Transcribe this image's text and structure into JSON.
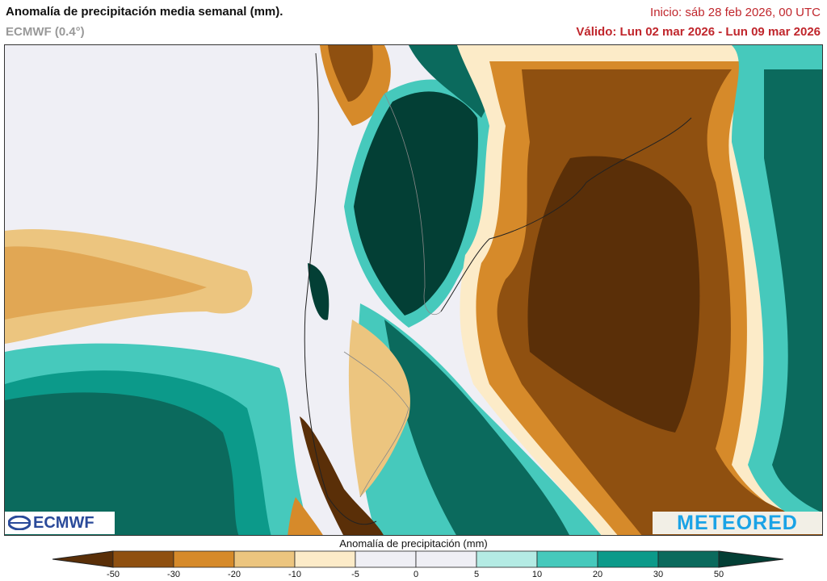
{
  "header": {
    "title": "Anomalía de precipitación media semanal (mm).",
    "model": "ECMWF (0.4°)",
    "init": "Inicio:  sáb 28 feb 2026, 00 UTC",
    "valid": "Válido: Lun 02 mar 2026 - Lun 09 mar 2026"
  },
  "logos": {
    "left": "ECMWF",
    "right": "METEORED"
  },
  "colorbar": {
    "title": "Anomalía de precipitación (mm)",
    "ticks": [
      "-50",
      "-30",
      "-20",
      "-10",
      "-5",
      "0",
      "5",
      "10",
      "20",
      "30",
      "50"
    ],
    "colors": [
      "#5a2f08",
      "#8f5010",
      "#d68a2a",
      "#ecc57f",
      "#fcebc8",
      "#efeff5",
      "#efeff5",
      "#b4ebe4",
      "#46c9bc",
      "#0c9a8a",
      "#0b6a5d",
      "#033f35"
    ]
  }
}
